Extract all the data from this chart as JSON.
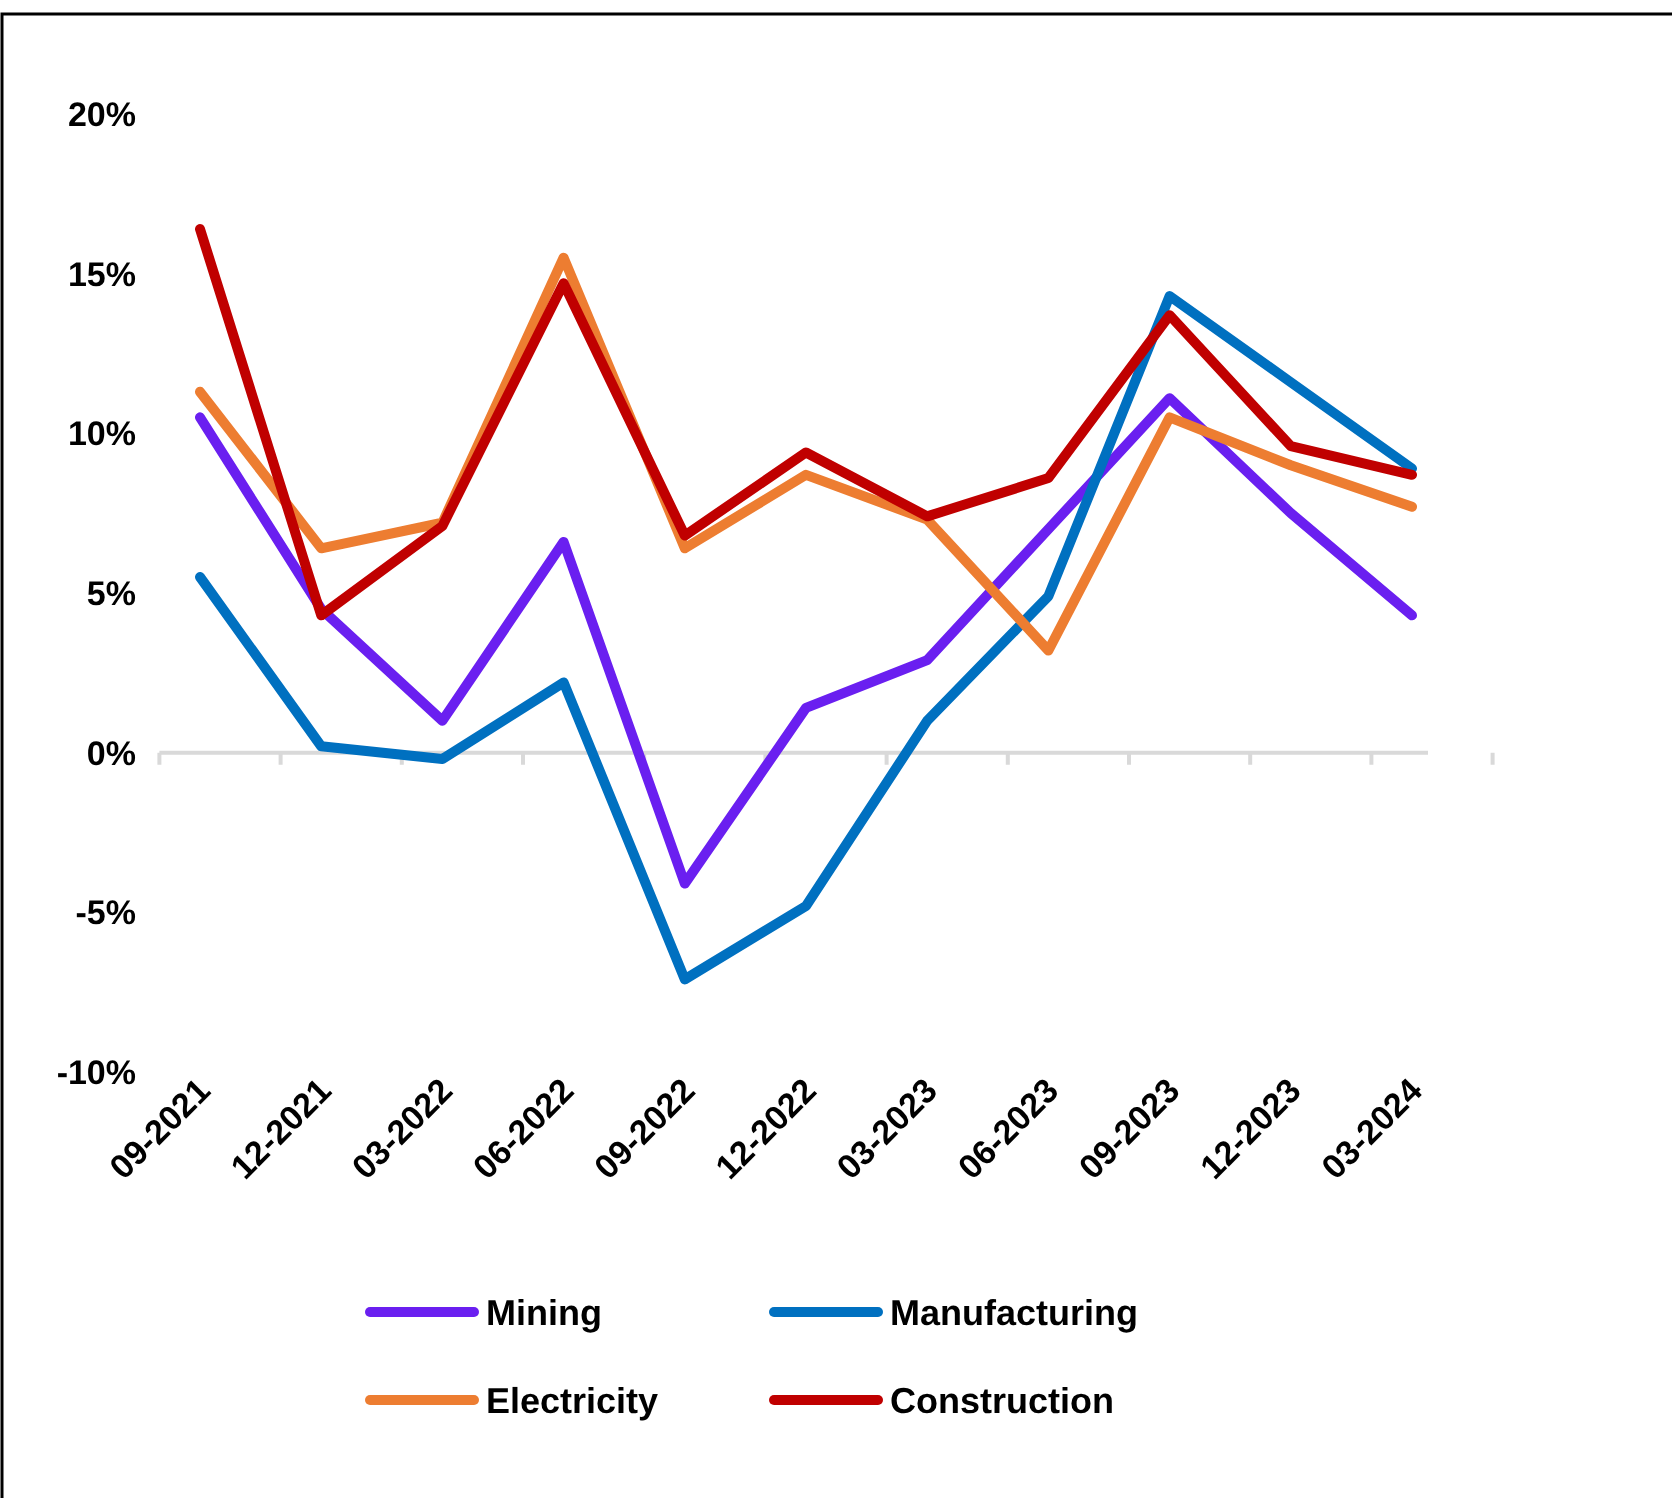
{
  "chart_data": {
    "type": "line",
    "categories": [
      "09-2021",
      "12-2021",
      "03-2022",
      "06-2022",
      "09-2022",
      "12-2022",
      "03-2023",
      "06-2023",
      "09-2023",
      "12-2023",
      "03-2024"
    ],
    "series": [
      {
        "name": "Mining",
        "color": "#6a1ff0",
        "values": [
          10.5,
          4.5,
          1.0,
          6.6,
          -4.1,
          1.4,
          2.9,
          7.0,
          11.1,
          7.5,
          4.3
        ]
      },
      {
        "name": "Manufacturing",
        "color": "#0070c0",
        "values": [
          5.5,
          0.2,
          -0.2,
          2.2,
          -7.1,
          -4.8,
          1.0,
          4.9,
          14.3,
          11.6,
          8.9
        ]
      },
      {
        "name": "Electricity",
        "color": "#ed7d31",
        "values": [
          11.3,
          6.4,
          7.2,
          15.5,
          6.4,
          8.7,
          7.3,
          3.2,
          10.5,
          9.0,
          7.7
        ]
      },
      {
        "name": "Construction",
        "color": "#c00000",
        "values": [
          16.4,
          4.3,
          7.1,
          14.7,
          6.8,
          9.4,
          7.4,
          8.6,
          13.7,
          9.6,
          8.7
        ]
      }
    ],
    "ylim": [
      -10,
      20
    ],
    "yticks": [
      {
        "value": -10,
        "label": "-10%"
      },
      {
        "value": -5,
        "label": "-5%"
      },
      {
        "value": 0,
        "label": "0%"
      },
      {
        "value": 5,
        "label": "5%"
      },
      {
        "value": 10,
        "label": "10%"
      },
      {
        "value": 15,
        "label": "15%"
      },
      {
        "value": 20,
        "label": "20%"
      }
    ],
    "legend": "bottom",
    "marker": "none",
    "line_style": "solid"
  }
}
